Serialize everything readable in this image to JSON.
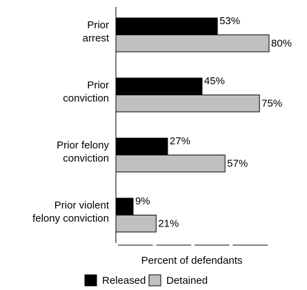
{
  "chart_data": {
    "type": "barh",
    "categories": [
      [
        "Prior",
        "arrest"
      ],
      [
        "Prior",
        "conviction"
      ],
      [
        "Prior felony",
        "conviction"
      ],
      [
        "Prior violent",
        "felony conviction"
      ]
    ],
    "series": [
      {
        "name": "Released",
        "color": "#000000",
        "values": [
          53,
          45,
          27,
          9
        ],
        "value_labels": [
          "53%",
          "45%",
          "27%",
          "9%"
        ]
      },
      {
        "name": "Detained",
        "color": "#c0c0c0",
        "values": [
          80,
          75,
          57,
          21
        ],
        "value_labels": [
          "80%",
          "75%",
          "57%",
          "21%"
        ]
      }
    ],
    "xlabel": "Percent of defendants",
    "xlim": [
      0,
      80
    ],
    "xticks": [
      0,
      20,
      40,
      60,
      80
    ]
  }
}
